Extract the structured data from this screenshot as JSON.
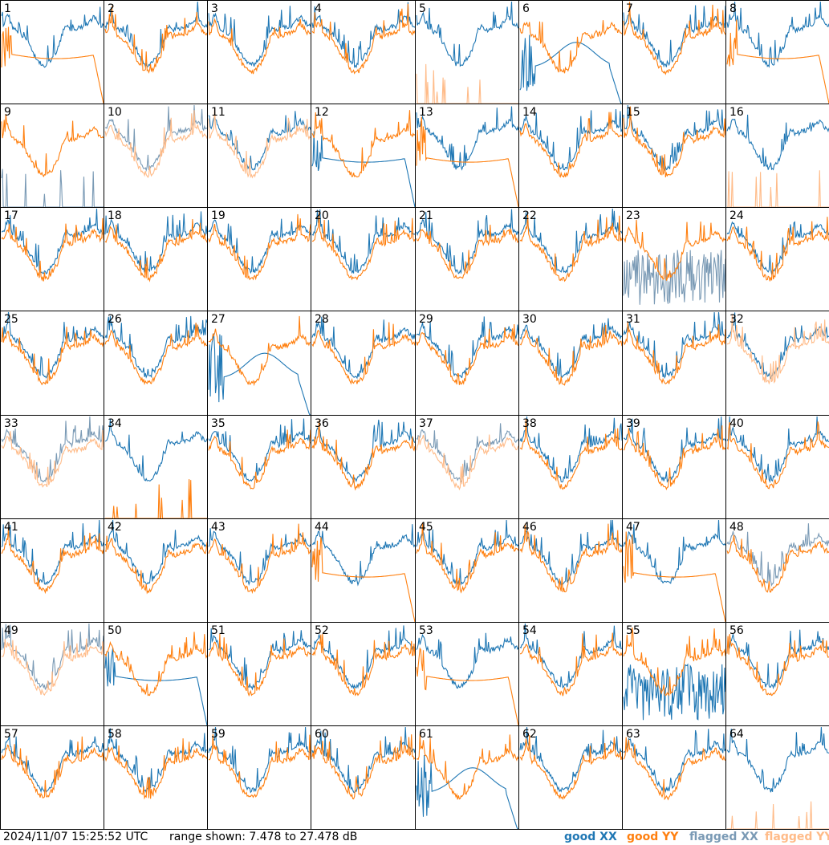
{
  "timestamp": "2024/11/07 15:25:52 UTC",
  "range_text": "range shown: 7.478 to 27.478 dB",
  "legend": {
    "good_xx": "good XX",
    "good_yy": "good YY",
    "flagged_xx": "flagged XX",
    "flagged_yy": "flagged YY"
  },
  "colors": {
    "good_xx": "#1f77b4",
    "good_yy": "#ff7f0e",
    "flagged_xx": "#7a9ab5",
    "flagged_yy": "#ffbb88"
  },
  "chart_data": {
    "type": "line",
    "grid": "8x8 small multiples",
    "ylim": [
      7.478,
      27.478
    ],
    "yunit": "dB",
    "panels": [
      {
        "id": "1",
        "xx": "good",
        "yy": "good",
        "note": "yy flat then drop"
      },
      {
        "id": "2",
        "xx": "good",
        "yy": "good"
      },
      {
        "id": "3",
        "xx": "good",
        "yy": "good"
      },
      {
        "id": "4",
        "xx": "good",
        "yy": "good"
      },
      {
        "id": "5",
        "xx": "good",
        "yy": "flagged",
        "note": "yy spikes only"
      },
      {
        "id": "6",
        "xx": "good",
        "yy": "good",
        "note": "xx hump then drop"
      },
      {
        "id": "7",
        "xx": "good",
        "yy": "good"
      },
      {
        "id": "8",
        "xx": "good",
        "yy": "good",
        "note": "yy flat then drop"
      },
      {
        "id": "9",
        "xx": "flagged",
        "yy": "good",
        "note": "xx spikes only"
      },
      {
        "id": "10",
        "xx": "flagged",
        "yy": "flagged"
      },
      {
        "id": "11",
        "xx": "good",
        "yy": "flagged"
      },
      {
        "id": "12",
        "xx": "good",
        "yy": "good",
        "note": "xx flat then drop"
      },
      {
        "id": "13",
        "xx": "good",
        "yy": "good",
        "note": "yy flat then drop"
      },
      {
        "id": "14",
        "xx": "good",
        "yy": "good"
      },
      {
        "id": "15",
        "xx": "good",
        "yy": "good"
      },
      {
        "id": "16",
        "xx": "good",
        "yy": "flagged",
        "note": "yy spikes only"
      },
      {
        "id": "17",
        "xx": "good",
        "yy": "good"
      },
      {
        "id": "18",
        "xx": "good",
        "yy": "good"
      },
      {
        "id": "19",
        "xx": "good",
        "yy": "good"
      },
      {
        "id": "20",
        "xx": "good",
        "yy": "good"
      },
      {
        "id": "21",
        "xx": "good",
        "yy": "good"
      },
      {
        "id": "22",
        "xx": "good",
        "yy": "good"
      },
      {
        "id": "23",
        "xx": "flagged",
        "yy": "good",
        "note": "xx noisy low"
      },
      {
        "id": "24",
        "xx": "good",
        "yy": "good"
      },
      {
        "id": "25",
        "xx": "good",
        "yy": "good"
      },
      {
        "id": "26",
        "xx": "good",
        "yy": "good"
      },
      {
        "id": "27",
        "xx": "good",
        "yy": "good",
        "note": "xx hump then drop"
      },
      {
        "id": "28",
        "xx": "good",
        "yy": "good"
      },
      {
        "id": "29",
        "xx": "good",
        "yy": "good"
      },
      {
        "id": "30",
        "xx": "good",
        "yy": "good"
      },
      {
        "id": "31",
        "xx": "good",
        "yy": "good"
      },
      {
        "id": "32",
        "xx": "good",
        "yy": "flagged"
      },
      {
        "id": "33",
        "xx": "flagged",
        "yy": "flagged"
      },
      {
        "id": "34",
        "xx": "good",
        "yy": "good",
        "note": "yy spikes only"
      },
      {
        "id": "35",
        "xx": "good",
        "yy": "good"
      },
      {
        "id": "36",
        "xx": "good",
        "yy": "good"
      },
      {
        "id": "37",
        "xx": "flagged",
        "yy": "flagged"
      },
      {
        "id": "38",
        "xx": "good",
        "yy": "good"
      },
      {
        "id": "39",
        "xx": "good",
        "yy": "good"
      },
      {
        "id": "40",
        "xx": "good",
        "yy": "good"
      },
      {
        "id": "41",
        "xx": "good",
        "yy": "good"
      },
      {
        "id": "42",
        "xx": "good",
        "yy": "good"
      },
      {
        "id": "43",
        "xx": "good",
        "yy": "good"
      },
      {
        "id": "44",
        "xx": "good",
        "yy": "good",
        "note": "yy flat then drop"
      },
      {
        "id": "45",
        "xx": "good",
        "yy": "good"
      },
      {
        "id": "46",
        "xx": "good",
        "yy": "good"
      },
      {
        "id": "47",
        "xx": "good",
        "yy": "good",
        "note": "yy flat then drop"
      },
      {
        "id": "48",
        "xx": "flagged",
        "yy": "good"
      },
      {
        "id": "49",
        "xx": "flagged",
        "yy": "flagged"
      },
      {
        "id": "50",
        "xx": "good",
        "yy": "good",
        "note": "xx flat then drop"
      },
      {
        "id": "51",
        "xx": "good",
        "yy": "good"
      },
      {
        "id": "52",
        "xx": "good",
        "yy": "good"
      },
      {
        "id": "53",
        "xx": "good",
        "yy": "good",
        "note": "yy flat then drop"
      },
      {
        "id": "54",
        "xx": "good",
        "yy": "good"
      },
      {
        "id": "55",
        "xx": "good",
        "yy": "good",
        "note": "xx noisy low"
      },
      {
        "id": "56",
        "xx": "good",
        "yy": "good"
      },
      {
        "id": "57",
        "xx": "good",
        "yy": "good"
      },
      {
        "id": "58",
        "xx": "good",
        "yy": "good"
      },
      {
        "id": "59",
        "xx": "good",
        "yy": "good"
      },
      {
        "id": "60",
        "xx": "good",
        "yy": "good"
      },
      {
        "id": "61",
        "xx": "good",
        "yy": "good",
        "note": "xx hump then drop"
      },
      {
        "id": "62",
        "xx": "good",
        "yy": "good"
      },
      {
        "id": "63",
        "xx": "good",
        "yy": "good"
      },
      {
        "id": "64",
        "xx": "good",
        "yy": "flagged",
        "note": "yy spikes only"
      }
    ]
  }
}
